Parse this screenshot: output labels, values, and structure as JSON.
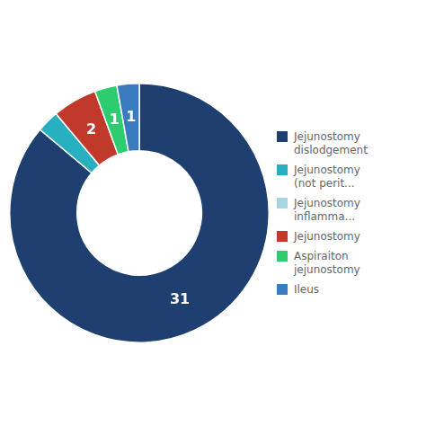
{
  "chart_data": {
    "type": "donut",
    "values": [
      31,
      1,
      2,
      1,
      1
    ],
    "value_labels": [
      "31",
      null,
      "2",
      "1",
      "1"
    ],
    "colors": [
      "#1e3f6f",
      "#29b0c0",
      "#c0392b",
      "#2ecc71",
      "#3a7abf"
    ],
    "legend": "right",
    "legend_entries": [
      {
        "name": "Jejunostomy\ndislodgement",
        "color": "#1e3f6f"
      },
      {
        "name": "Jejunostomy\n(not perit...",
        "color": "#29b0c0"
      },
      {
        "name": "Jejunostomy\ninflamma...",
        "color": "#a8d4e0"
      },
      {
        "name": "Jejunostomy",
        "color": "#c0392b"
      },
      {
        "name": "Aspiraiton\njejunostomy",
        "color": "#2ecc71"
      },
      {
        "name": "Ileus",
        "color": "#3a7abf"
      }
    ]
  }
}
